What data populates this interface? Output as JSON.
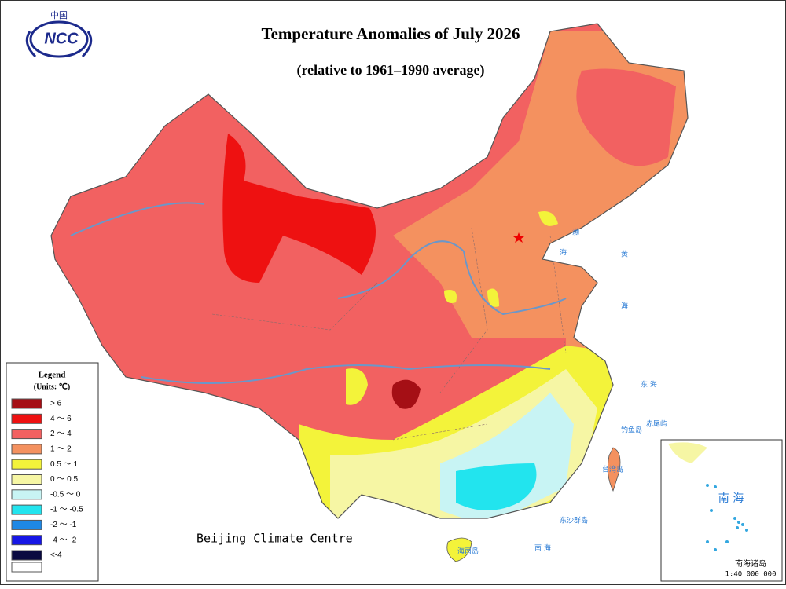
{
  "header": {
    "title": "Temperature Anomalies of July 2026",
    "subtitle": "(relative to 1961–1990 average)",
    "logo_top": "中国",
    "logo_text": "NCC"
  },
  "legend": {
    "title": "Legend",
    "units": "(Units: ℃)",
    "items": [
      {
        "label": "> 6",
        "color": "#a50f15"
      },
      {
        "label": "4 ～ 6",
        "color": "#ee1111"
      },
      {
        "label": "2 ～ 4",
        "color": "#f26161"
      },
      {
        "label": "1 ～ 2",
        "color": "#f4915f"
      },
      {
        "label": "0.5 ～ 1",
        "color": "#f3f33a"
      },
      {
        "label": "0 ～ 0.5",
        "color": "#f6f6a4"
      },
      {
        "label": "-0.5 ～ 0",
        "color": "#c8f4f4"
      },
      {
        "label": "-1 ～ -0.5",
        "color": "#22e4ee"
      },
      {
        "label": "-2 ～ -1",
        "color": "#1e88e5"
      },
      {
        "label": "-4 ～ -2",
        "color": "#1616e6"
      },
      {
        "label": "<-4",
        "color": "#0a0a40"
      }
    ]
  },
  "footer": "Beijing Climate Centre",
  "map_labels": {
    "bohai": "渤",
    "huanghai": "黄",
    "hai1": "海",
    "hai2": "海",
    "donghai": "东 海",
    "nanhai": "南 海",
    "diaoyu": "钓鱼岛",
    "chiwei": "赤尾屿",
    "taiwan": "台湾岛",
    "dongsha": "东沙群岛",
    "hainan": "海南岛",
    "inset_sea": "南 海",
    "inset_title": "南海诸岛",
    "inset_scale": "1:40 000 000"
  }
}
